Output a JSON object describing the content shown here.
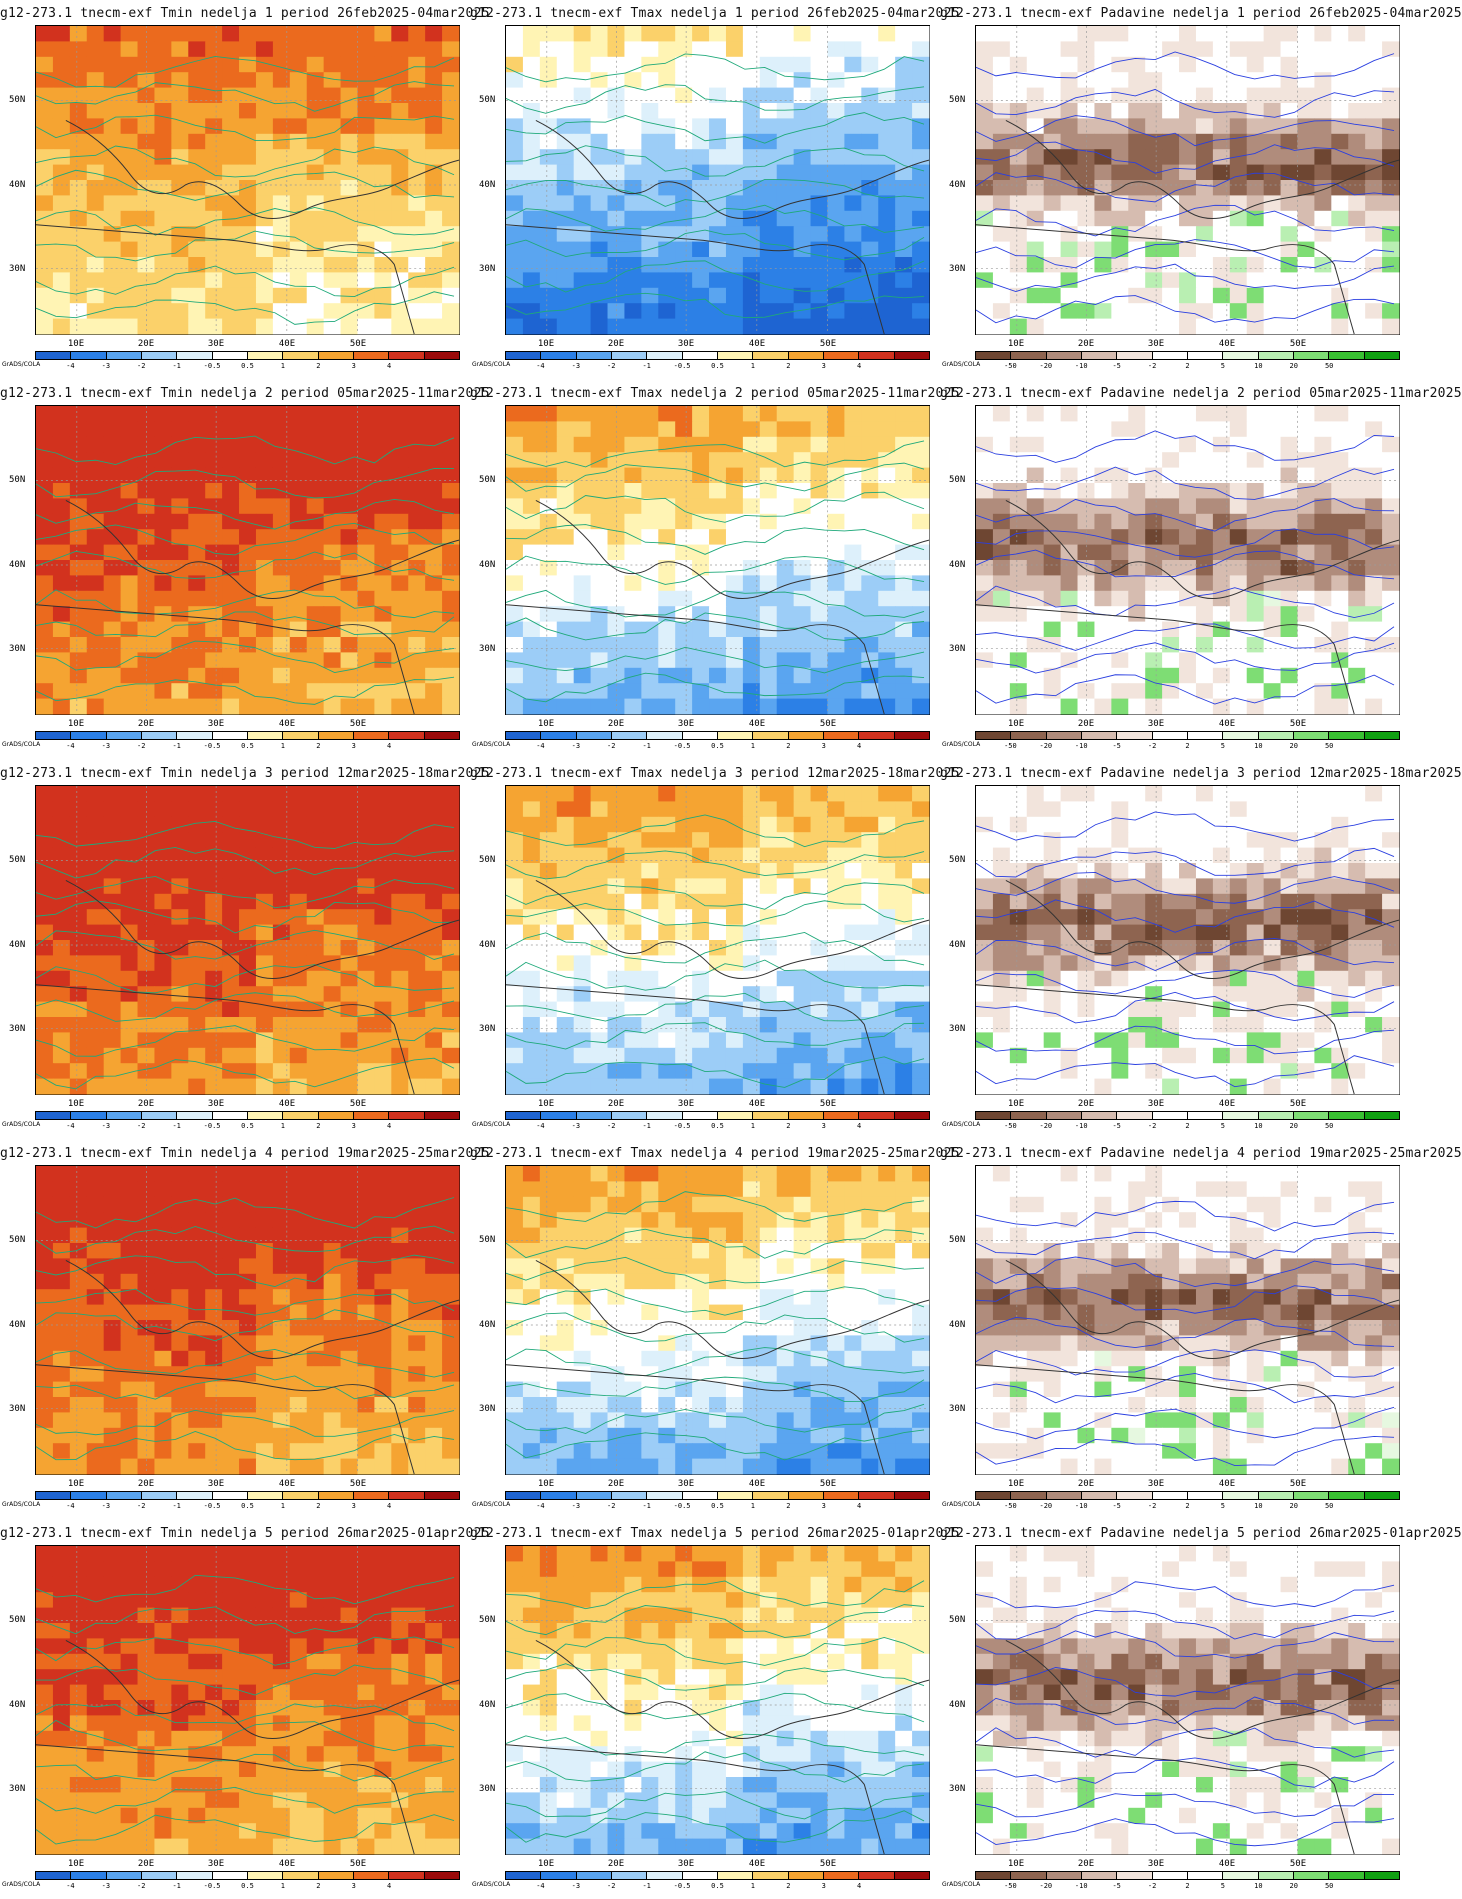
{
  "scales": {
    "temp": {
      "colors": [
        "#1e64d2",
        "#2c80e6",
        "#5aa5f0",
        "#9ccdf7",
        "#ddf0fb",
        "#ffffff",
        "#fff4b4",
        "#fbd16a",
        "#f5a432",
        "#eb6a1e",
        "#d2321e",
        "#9b0a0a"
      ],
      "ticks": [
        "-4",
        "-3",
        "-2",
        "-1",
        "-0.5",
        "0.5",
        "1",
        "2",
        "3",
        "4"
      ]
    },
    "prec": {
      "colors": [
        "#6e4632",
        "#8e6450",
        "#b08c7c",
        "#d6bcb0",
        "#f2e4dc",
        "#ffffff",
        "#ffffff",
        "#e6f8e0",
        "#b9efb2",
        "#7edd74",
        "#39c032",
        "#10a012"
      ],
      "ticks": [
        "-50",
        "-20",
        "-10",
        "-5",
        "-2",
        "2",
        "5",
        "10",
        "20",
        "50"
      ]
    }
  },
  "axes": {
    "y_labels": [
      "50N",
      "40N",
      "30N"
    ],
    "x_labels": [
      "10E",
      "20E",
      "30E",
      "40E",
      "50E"
    ]
  },
  "brand": "GrADS/COLA",
  "panels": [
    {
      "title": "g12-273.1 tnecm-exf Tmin nedelja 1 period 26feb2025-04mar2025",
      "kind": "tmin",
      "scale": "temp",
      "warmth": -0.2
    },
    {
      "title": "g12-273.1 tnecm-exf Tmax nedelja 1 period 26feb2025-04mar2025",
      "kind": "tmax",
      "scale": "temp",
      "warmth": -0.7
    },
    {
      "title": "g12-273.1 tnecm-exf Padavine nedelja 1 period 26feb2025-04mar2025",
      "kind": "prec",
      "scale": "prec",
      "warmth": 0
    },
    {
      "title": "g12-273.1 tnecm-exf Tmin nedelja 2 period 05mar2025-11mar2025",
      "kind": "tmin",
      "scale": "temp",
      "warmth": 0.6
    },
    {
      "title": "g12-273.1 tnecm-exf Tmax nedelja 2 period 05mar2025-11mar2025",
      "kind": "tmax",
      "scale": "temp",
      "warmth": 0.1
    },
    {
      "title": "g12-273.1 tnecm-exf Padavine nedelja 2 period 05mar2025-11mar2025",
      "kind": "prec",
      "scale": "prec",
      "warmth": 0
    },
    {
      "title": "g12-273.1 tnecm-exf Tmin nedelja 3 period 12mar2025-18mar2025",
      "kind": "tmin",
      "scale": "temp",
      "warmth": 0.7
    },
    {
      "title": "g12-273.1 tnecm-exf Tmax nedelja 3 period 12mar2025-18mar2025",
      "kind": "tmax",
      "scale": "temp",
      "warmth": 0.2
    },
    {
      "title": "g12-273.1 tnecm-exf Padavine nedelja 3 period 12mar2025-18mar2025",
      "kind": "prec",
      "scale": "prec",
      "warmth": 0
    },
    {
      "title": "g12-273.1 tnecm-exf Tmin nedelja 4 period 19mar2025-25mar2025",
      "kind": "tmin",
      "scale": "temp",
      "warmth": 0.6
    },
    {
      "title": "g12-273.1 tnecm-exf Tmax nedelja 4 period 19mar2025-25mar2025",
      "kind": "tmax",
      "scale": "temp",
      "warmth": 0.1
    },
    {
      "title": "g12-273.1 tnecm-exf Padavine nedelja 4 period 19mar2025-25mar2025",
      "kind": "prec",
      "scale": "prec",
      "warmth": 0
    },
    {
      "title": "g12-273.1 tnecm-exf Tmin nedelja 5 period 26mar2025-01apr2025",
      "kind": "tmin",
      "scale": "temp",
      "warmth": 0.5
    },
    {
      "title": "g12-273.1 tnecm-exf Tmax nedelja 5 period 26mar2025-01apr2025",
      "kind": "tmax",
      "scale": "temp",
      "warmth": 0.2
    },
    {
      "title": "g12-273.1 tnecm-exf Padavine nedelja 5 period 26mar2025-01apr2025",
      "kind": "prec",
      "scale": "prec",
      "warmth": 0
    }
  ]
}
